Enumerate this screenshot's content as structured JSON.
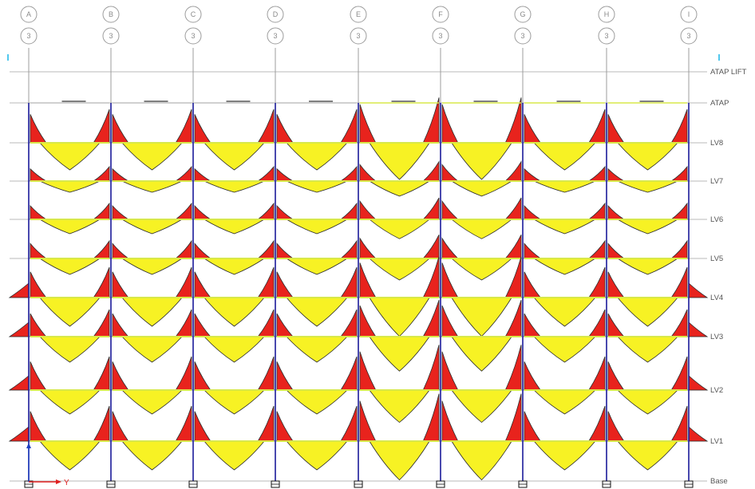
{
  "grid_columns": [
    {
      "label": "A",
      "sub": "3"
    },
    {
      "label": "B",
      "sub": "3"
    },
    {
      "label": "C",
      "sub": "3"
    },
    {
      "label": "D",
      "sub": "3"
    },
    {
      "label": "E",
      "sub": "3"
    },
    {
      "label": "F",
      "sub": "3"
    },
    {
      "label": "G",
      "sub": "3"
    },
    {
      "label": "H",
      "sub": "3"
    },
    {
      "label": "I",
      "sub": "3"
    }
  ],
  "stories": [
    "ATAP LIFT",
    "ATAP",
    "LV8",
    "LV7",
    "LV6",
    "LV5",
    "LV4",
    "LV3",
    "LV2",
    "LV1",
    "Base"
  ],
  "axis_label": "Y",
  "colors": {
    "positive_moment": "#f7f224",
    "negative_moment": "#e8231d",
    "column": "#1a1a9a",
    "grid": "#b8b8b8"
  }
}
